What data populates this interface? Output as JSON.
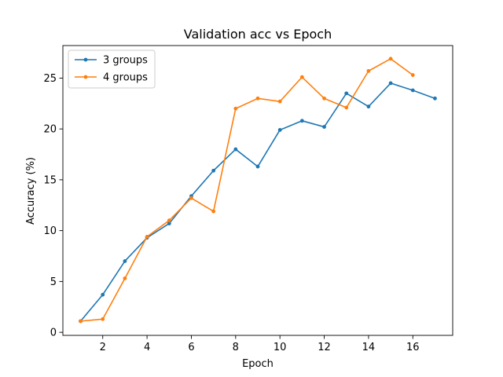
{
  "chart_data": {
    "type": "line",
    "title": "Validation acc vs Epoch",
    "xlabel": "Epoch",
    "ylabel": "Accuracy (%)",
    "xlim": [
      0.2,
      17.8
    ],
    "ylim": [
      -0.3,
      28.2
    ],
    "xticks": [
      2,
      4,
      6,
      8,
      10,
      12,
      14,
      16
    ],
    "yticks": [
      0,
      5,
      10,
      15,
      20,
      25
    ],
    "grid": false,
    "legend_placement": "top-left",
    "series": [
      {
        "name": "3 groups",
        "color": "#1f77b4",
        "x": [
          1,
          2,
          3,
          4,
          5,
          6,
          7,
          8,
          9,
          10,
          11,
          12,
          13,
          14,
          15,
          16,
          17
        ],
        "y": [
          1.1,
          3.7,
          7.0,
          9.3,
          10.7,
          13.4,
          15.9,
          18.0,
          16.3,
          19.9,
          20.8,
          20.2,
          23.5,
          22.2,
          24.5,
          23.8,
          23.0
        ]
      },
      {
        "name": "4 groups",
        "color": "#ff7f0e",
        "x": [
          1,
          2,
          3,
          4,
          5,
          6,
          7,
          8,
          9,
          10,
          11,
          12,
          13,
          14,
          15,
          16
        ],
        "y": [
          1.1,
          1.3,
          5.3,
          9.4,
          11.0,
          13.2,
          11.9,
          22.0,
          23.0,
          22.7,
          25.1,
          23.0,
          22.1,
          25.7,
          26.9,
          25.3
        ]
      }
    ]
  }
}
